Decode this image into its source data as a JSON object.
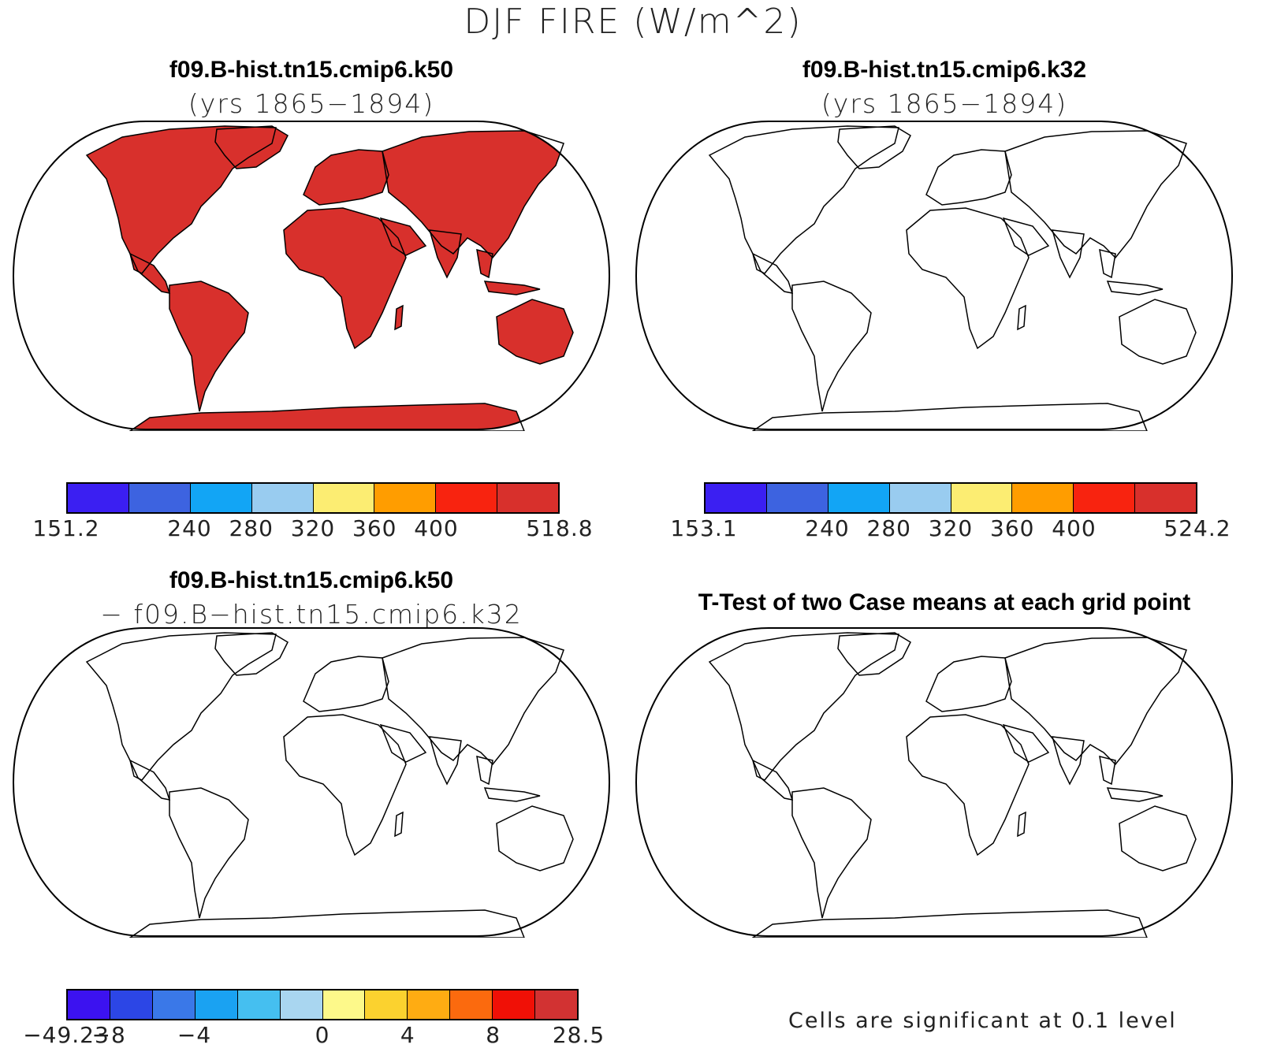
{
  "figure": {
    "title": "DJF FIRE (W/m^2)"
  },
  "panels": {
    "top_left": {
      "title": "f09.B-hist.tn15.cmip6.k50",
      "subtitle": "(yrs 1865−1894)",
      "colorbar": {
        "colors": [
          "#3b1ff2",
          "#3d63e0",
          "#12a5f5",
          "#99ccf0",
          "#fced72",
          "#ff9d00",
          "#f8230f",
          "#d8302c"
        ],
        "labels": [
          "151.2",
          "",
          "240",
          "280",
          "320",
          "360",
          "400",
          "",
          "518.8"
        ]
      }
    },
    "top_right": {
      "title": "f09.B-hist.tn15.cmip6.k32",
      "subtitle": "(yrs 1865−1894)",
      "colorbar": {
        "colors": [
          "#3b1ff2",
          "#3d63e0",
          "#12a5f5",
          "#99ccf0",
          "#fced72",
          "#ff9d00",
          "#f8230f",
          "#d8302c"
        ],
        "labels": [
          "153.1",
          "",
          "240",
          "280",
          "320",
          "360",
          "400",
          "",
          "524.2"
        ]
      }
    },
    "bottom_left": {
      "title": "f09.B-hist.tn15.cmip6.k50",
      "subtitle": "− f09.B−hist.tn15.cmip6.k32",
      "colorbar": {
        "colors": [
          "#3c12f0",
          "#2c46e6",
          "#3a78e8",
          "#1aa2f2",
          "#45bff0",
          "#a9d6f0",
          "#fdf98a",
          "#fbd22f",
          "#ffac12",
          "#fb6a0e",
          "#f01006",
          "#d23232"
        ],
        "labels": [
          "−49.23",
          "−8",
          "",
          "−4",
          "",
          "",
          "0",
          "",
          "4",
          "",
          "8",
          "",
          "28.5"
        ]
      }
    },
    "bottom_right": {
      "title": "T-Test of two Case means at each grid point",
      "note": "Cells are significant at 0.1 level",
      "significance_color": "#ff0000"
    }
  }
}
